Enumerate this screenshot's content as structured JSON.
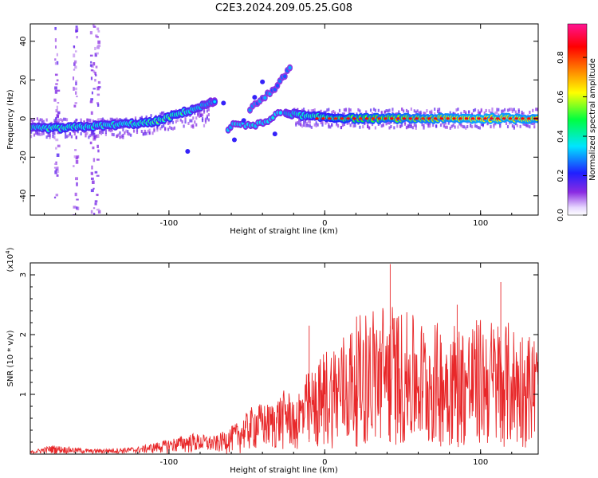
{
  "title": "C2E3.2024.209.05.25.G08",
  "chart_data": [
    {
      "type": "heatmap",
      "xlabel": "Height of straight line (km)",
      "ylabel": "Frequency (Hz)",
      "xlim": [
        -189,
        137
      ],
      "ylim": [
        -50,
        49
      ],
      "x_ticks": [
        -100,
        0,
        100
      ],
      "y_ticks": [
        -40,
        -20,
        0,
        20,
        40
      ],
      "grid": false,
      "colorbar": {
        "label": "Normalized spectral amplitude",
        "range": [
          0.0,
          0.97
        ],
        "ticks": [
          0.0,
          0.2,
          0.4,
          0.6,
          0.8
        ],
        "colormap": [
          "#ffffff",
          "#8a2be2",
          "#2020ff",
          "#00e5ff",
          "#00ff40",
          "#ffff00",
          "#ff8000",
          "#ff0000",
          "#ff1493"
        ]
      },
      "ridge": [
        {
          "x": -189,
          "y": -5,
          "amp": 0.45
        },
        {
          "x": -170,
          "y": -5,
          "amp": 0.55
        },
        {
          "x": -150,
          "y": -4,
          "amp": 0.5
        },
        {
          "x": -130,
          "y": -3,
          "amp": 0.5
        },
        {
          "x": -110,
          "y": -2,
          "amp": 0.55
        },
        {
          "x": -95,
          "y": 2,
          "amp": 0.55
        },
        {
          "x": -80,
          "y": 6,
          "amp": 0.45
        },
        {
          "x": -70,
          "y": 9,
          "amp": 0.35
        },
        {
          "x": -60,
          "y": -4,
          "amp": 0.3
        },
        {
          "x": -50,
          "y": -2,
          "amp": 0.3
        },
        {
          "x": -40,
          "y": 8,
          "amp": 0.3
        },
        {
          "x": -30,
          "y": 16,
          "amp": 0.3
        },
        {
          "x": -22,
          "y": 27,
          "amp": 0.2
        },
        {
          "x": -25,
          "y": 3,
          "amp": 0.4
        },
        {
          "x": -10,
          "y": 1,
          "amp": 0.55
        },
        {
          "x": 20,
          "y": 0,
          "amp": 0.7
        },
        {
          "x": 60,
          "y": 0,
          "amp": 0.8
        },
        {
          "x": 100,
          "y": 0,
          "amp": 0.9
        },
        {
          "x": 137,
          "y": 0,
          "amp": 0.85
        }
      ]
    },
    {
      "type": "line",
      "xlabel": "Height of straight line (km)",
      "ylabel": "SNR (10 * v/v)",
      "y_multiplier": "(x10^4)",
      "xlim": [
        -189,
        137
      ],
      "ylim": [
        0,
        3.2
      ],
      "x_ticks": [
        -100,
        0,
        100
      ],
      "y_ticks": [
        1,
        2,
        3
      ],
      "grid": false,
      "color": "#e8282a",
      "envelope": {
        "x": [
          -189,
          -175,
          -150,
          -120,
          -100,
          -85,
          -70,
          -55,
          -45,
          -35,
          -25,
          -20,
          -12,
          -5,
          0,
          10,
          20,
          30,
          40,
          50,
          60,
          70,
          80,
          90,
          100,
          110,
          120,
          130,
          137
        ],
        "min": [
          0.0,
          0.0,
          0.0,
          0.0,
          0.02,
          0.05,
          0.0,
          0.0,
          0.0,
          0.0,
          0.0,
          0.0,
          0.0,
          0.0,
          0.0,
          0.0,
          0.0,
          0.0,
          0.0,
          0.0,
          0.0,
          0.0,
          0.0,
          0.0,
          0.0,
          0.0,
          0.0,
          0.0,
          0.0
        ],
        "max": [
          0.05,
          0.15,
          0.08,
          0.12,
          0.25,
          0.35,
          0.3,
          0.55,
          0.85,
          0.85,
          1.1,
          1.0,
          1.35,
          1.5,
          1.8,
          2.0,
          2.3,
          2.5,
          2.6,
          2.4,
          2.3,
          2.2,
          2.3,
          2.2,
          2.3,
          2.3,
          2.2,
          2.1,
          2.0
        ],
        "spikes": [
          {
            "x": -10,
            "y": 2.15
          },
          {
            "x": 42,
            "y": 3.18
          },
          {
            "x": 113,
            "y": 2.88
          },
          {
            "x": 85,
            "y": 2.5
          }
        ]
      }
    }
  ]
}
